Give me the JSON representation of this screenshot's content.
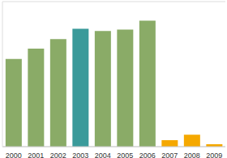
{
  "chart_data": {
    "type": "bar",
    "categories": [
      "2000",
      "2001",
      "2002",
      "2003",
      "2004",
      "2005",
      "2006",
      "2007",
      "2008",
      "2009"
    ],
    "values": [
      4.23,
      4.73,
      5.19,
      5.69,
      5.58,
      5.65,
      6.08,
      0.31,
      0.58,
      0.12
    ],
    "colors": [
      "#8aab67",
      "#8aab67",
      "#8aab67",
      "#3a9a9a",
      "#8aab67",
      "#8aab67",
      "#8aab67",
      "#f5a800",
      "#f5a800",
      "#f5a800"
    ],
    "ylim": [
      0,
      7
    ],
    "yticks": [
      0,
      1,
      2,
      3,
      4,
      5,
      6,
      7
    ],
    "grid": true,
    "tick_labels": "x"
  }
}
